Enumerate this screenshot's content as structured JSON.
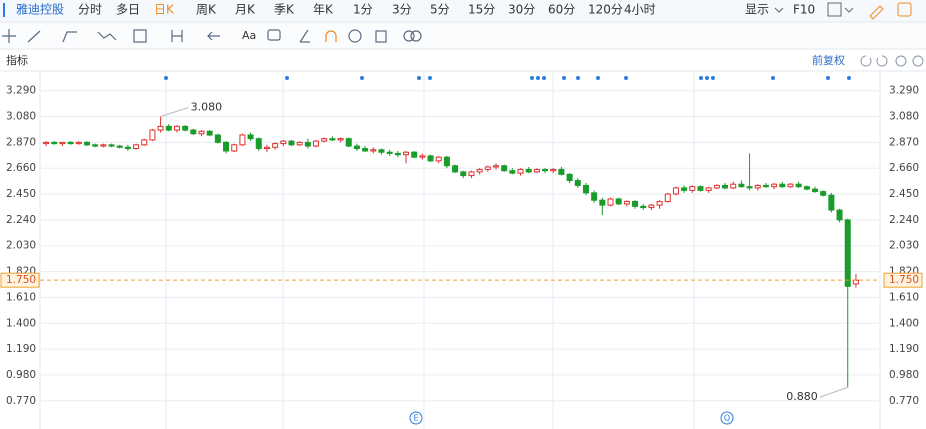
{
  "toolbar": {
    "stock": "雅迪控股",
    "periods": [
      "分时",
      "多日",
      "日K",
      "周K",
      "月K",
      "季K",
      "年K",
      "1分",
      "3分",
      "5分",
      "15分",
      "30分",
      "60分",
      "120分",
      "4小时"
    ],
    "selected_period_index": 2,
    "display": "显示",
    "f10": "F10"
  },
  "drawing_tools": {
    "text_tool": "Aa"
  },
  "chart_data": {
    "type": "candlestick",
    "indicator_label": "指标",
    "adjustment": "前复权",
    "up_color": "#e0312f",
    "down_color": "#1a9c2a",
    "ylim": [
      0.63,
      3.45
    ],
    "yticks": [
      {
        "value": 3.29,
        "label": "3.290"
      },
      {
        "value": 3.08,
        "label": "3.080"
      },
      {
        "value": 2.87,
        "label": "2.870"
      },
      {
        "value": 2.66,
        "label": "2.660"
      },
      {
        "value": 2.45,
        "label": "2.450"
      },
      {
        "value": 2.24,
        "label": "2.240"
      },
      {
        "value": 2.03,
        "label": "2.030"
      },
      {
        "value": 1.82,
        "label": "1.820"
      },
      {
        "value": 1.61,
        "label": "1.610"
      },
      {
        "value": 1.4,
        "label": "1.400"
      },
      {
        "value": 1.19,
        "label": "1.190"
      },
      {
        "value": 0.98,
        "label": "0.980"
      },
      {
        "value": 0.77,
        "label": "0.770"
      }
    ],
    "max_label": {
      "value": 3.08,
      "label": "3.080"
    },
    "min_label": {
      "value": 0.88,
      "label": "0.880"
    },
    "last_price": {
      "value": 1.75,
      "label": "1.750"
    },
    "event_markers": [
      "E",
      "Q"
    ],
    "candles": [
      [
        2.86,
        2.88,
        2.84,
        2.87
      ],
      [
        2.87,
        2.88,
        2.85,
        2.86
      ],
      [
        2.86,
        2.87,
        2.84,
        2.87
      ],
      [
        2.87,
        2.88,
        2.85,
        2.86
      ],
      [
        2.86,
        2.88,
        2.85,
        2.87
      ],
      [
        2.87,
        2.88,
        2.84,
        2.85
      ],
      [
        2.85,
        2.86,
        2.83,
        2.84
      ],
      [
        2.84,
        2.86,
        2.83,
        2.85
      ],
      [
        2.85,
        2.86,
        2.83,
        2.84
      ],
      [
        2.84,
        2.85,
        2.82,
        2.83
      ],
      [
        2.83,
        2.85,
        2.8,
        2.82
      ],
      [
        2.82,
        2.86,
        2.81,
        2.85
      ],
      [
        2.85,
        2.9,
        2.84,
        2.89
      ],
      [
        2.89,
        2.98,
        2.88,
        2.97
      ],
      [
        2.97,
        3.08,
        2.95,
        3.0
      ],
      [
        3.0,
        3.02,
        2.96,
        2.97
      ],
      [
        2.97,
        3.01,
        2.95,
        3.0
      ],
      [
        3.0,
        3.01,
        2.96,
        2.97
      ],
      [
        2.97,
        2.98,
        2.93,
        2.94
      ],
      [
        2.94,
        2.97,
        2.92,
        2.96
      ],
      [
        2.96,
        2.97,
        2.92,
        2.93
      ],
      [
        2.93,
        2.94,
        2.86,
        2.87
      ],
      [
        2.87,
        2.88,
        2.78,
        2.8
      ],
      [
        2.8,
        2.86,
        2.79,
        2.85
      ],
      [
        2.85,
        2.94,
        2.84,
        2.93
      ],
      [
        2.93,
        2.95,
        2.88,
        2.9
      ],
      [
        2.9,
        2.91,
        2.8,
        2.82
      ],
      [
        2.82,
        2.85,
        2.79,
        2.83
      ],
      [
        2.83,
        2.87,
        2.81,
        2.86
      ],
      [
        2.86,
        2.89,
        2.84,
        2.88
      ],
      [
        2.88,
        2.89,
        2.84,
        2.85
      ],
      [
        2.85,
        2.88,
        2.84,
        2.87
      ],
      [
        2.87,
        2.9,
        2.82,
        2.84
      ],
      [
        2.84,
        2.89,
        2.83,
        2.88
      ],
      [
        2.88,
        2.91,
        2.87,
        2.9
      ],
      [
        2.9,
        2.92,
        2.88,
        2.89
      ],
      [
        2.89,
        2.91,
        2.87,
        2.9
      ],
      [
        2.9,
        2.91,
        2.83,
        2.84
      ],
      [
        2.84,
        2.86,
        2.8,
        2.82
      ],
      [
        2.82,
        2.84,
        2.79,
        2.8
      ],
      [
        2.8,
        2.83,
        2.78,
        2.81
      ],
      [
        2.81,
        2.82,
        2.77,
        2.79
      ],
      [
        2.79,
        2.81,
        2.76,
        2.78
      ],
      [
        2.78,
        2.8,
        2.75,
        2.77
      ],
      [
        2.77,
        2.8,
        2.7,
        2.79
      ],
      [
        2.79,
        2.8,
        2.74,
        2.75
      ],
      [
        2.75,
        2.78,
        2.73,
        2.76
      ],
      [
        2.76,
        2.77,
        2.71,
        2.72
      ],
      [
        2.72,
        2.76,
        2.7,
        2.75
      ],
      [
        2.75,
        2.76,
        2.66,
        2.68
      ],
      [
        2.68,
        2.69,
        2.62,
        2.63
      ],
      [
        2.63,
        2.64,
        2.58,
        2.6
      ],
      [
        2.6,
        2.64,
        2.58,
        2.63
      ],
      [
        2.63,
        2.66,
        2.61,
        2.65
      ],
      [
        2.65,
        2.68,
        2.63,
        2.67
      ],
      [
        2.67,
        2.7,
        2.65,
        2.68
      ],
      [
        2.68,
        2.69,
        2.63,
        2.64
      ],
      [
        2.64,
        2.66,
        2.61,
        2.62
      ],
      [
        2.62,
        2.66,
        2.6,
        2.65
      ],
      [
        2.65,
        2.67,
        2.62,
        2.63
      ],
      [
        2.63,
        2.66,
        2.62,
        2.65
      ],
      [
        2.65,
        2.66,
        2.62,
        2.64
      ],
      [
        2.64,
        2.66,
        2.62,
        2.65
      ],
      [
        2.65,
        2.67,
        2.6,
        2.61
      ],
      [
        2.61,
        2.62,
        2.54,
        2.56
      ],
      [
        2.56,
        2.58,
        2.5,
        2.52
      ],
      [
        2.52,
        2.54,
        2.44,
        2.46
      ],
      [
        2.46,
        2.48,
        2.38,
        2.4
      ],
      [
        2.4,
        2.42,
        2.28,
        2.36
      ],
      [
        2.36,
        2.42,
        2.35,
        2.41
      ],
      [
        2.41,
        2.42,
        2.36,
        2.37
      ],
      [
        2.37,
        2.4,
        2.35,
        2.39
      ],
      [
        2.39,
        2.4,
        2.33,
        2.35
      ],
      [
        2.35,
        2.37,
        2.32,
        2.34
      ],
      [
        2.34,
        2.37,
        2.32,
        2.36
      ],
      [
        2.36,
        2.4,
        2.33,
        2.39
      ],
      [
        2.39,
        2.46,
        2.38,
        2.45
      ],
      [
        2.45,
        2.51,
        2.44,
        2.5
      ],
      [
        2.5,
        2.52,
        2.46,
        2.48
      ],
      [
        2.48,
        2.52,
        2.46,
        2.51
      ],
      [
        2.51,
        2.52,
        2.47,
        2.48
      ],
      [
        2.48,
        2.51,
        2.46,
        2.5
      ],
      [
        2.5,
        2.53,
        2.49,
        2.52
      ],
      [
        2.52,
        2.54,
        2.49,
        2.5
      ],
      [
        2.5,
        2.55,
        2.49,
        2.53
      ],
      [
        2.53,
        2.56,
        2.5,
        2.51
      ],
      [
        2.51,
        2.78,
        2.48,
        2.5
      ],
      [
        2.5,
        2.53,
        2.48,
        2.52
      ],
      [
        2.52,
        2.54,
        2.5,
        2.51
      ],
      [
        2.51,
        2.54,
        2.49,
        2.53
      ],
      [
        2.53,
        2.55,
        2.5,
        2.51
      ],
      [
        2.51,
        2.54,
        2.5,
        2.53
      ],
      [
        2.53,
        2.55,
        2.5,
        2.51
      ],
      [
        2.51,
        2.52,
        2.48,
        2.49
      ],
      [
        2.49,
        2.51,
        2.46,
        2.47
      ],
      [
        2.47,
        2.48,
        2.43,
        2.44
      ],
      [
        2.44,
        2.46,
        2.3,
        2.32
      ],
      [
        2.32,
        2.33,
        2.22,
        2.24
      ],
      [
        2.24,
        2.25,
        0.88,
        1.7
      ],
      [
        1.72,
        1.8,
        1.69,
        1.75
      ]
    ]
  }
}
